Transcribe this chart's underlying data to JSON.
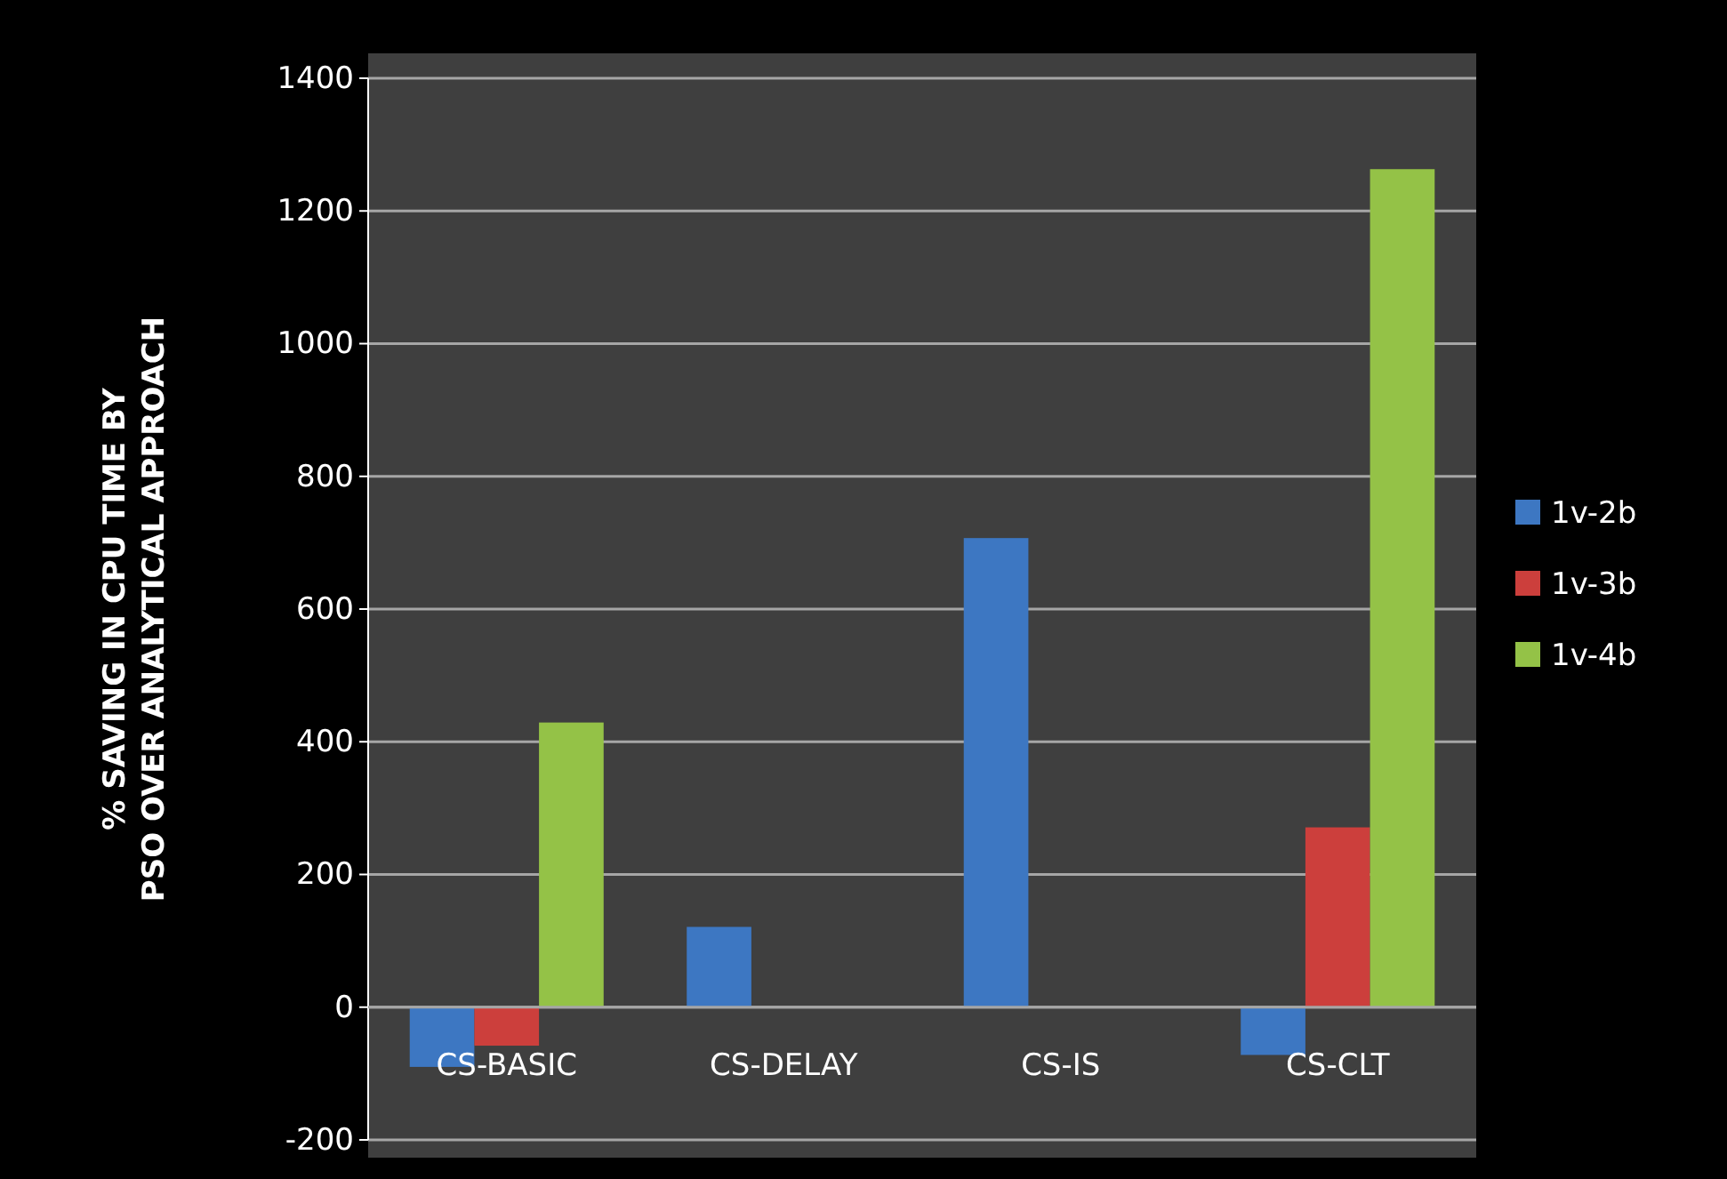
{
  "chart_data": {
    "type": "bar",
    "ylabel": "% SAVING IN CPU TIME BY PSO OVER ANALYTICAL APPROACH",
    "categories": [
      "CS-BASIC",
      "CS-DELAY",
      "CS-IS",
      "CS-CLT"
    ],
    "series": [
      {
        "name": "1v-2b",
        "color": "#3d77c2",
        "values": [
          -90,
          121,
          707,
          -72
        ]
      },
      {
        "name": "1v-3b",
        "color": "#cc3f3c",
        "values": [
          -58,
          null,
          null,
          271
        ]
      },
      {
        "name": "1v-4b",
        "color": "#94c247",
        "values": [
          429,
          null,
          null,
          1263
        ]
      }
    ],
    "ylim": [
      -200,
      1400
    ],
    "yticks": [
      -200,
      0,
      200,
      400,
      600,
      800,
      1000,
      1200,
      1400
    ],
    "grid": "y",
    "legend": "right"
  }
}
